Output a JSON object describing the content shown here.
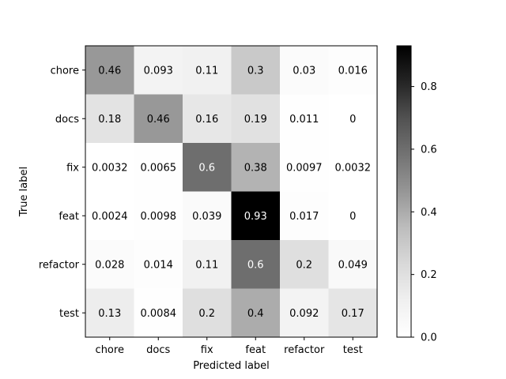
{
  "chart_data": {
    "type": "heatmap",
    "title": "",
    "xlabel": "Predicted label",
    "ylabel": "True label",
    "x_categories": [
      "chore",
      "docs",
      "fix",
      "feat",
      "refactor",
      "test"
    ],
    "y_categories": [
      "chore",
      "docs",
      "fix",
      "feat",
      "refactor",
      "test"
    ],
    "cell_labels": [
      [
        "0.46",
        "0.093",
        "0.11",
        "0.3",
        "0.03",
        "0.016"
      ],
      [
        "0.18",
        "0.46",
        "0.16",
        "0.19",
        "0.011",
        "0"
      ],
      [
        "0.0032",
        "0.0065",
        "0.6",
        "0.38",
        "0.0097",
        "0.0032"
      ],
      [
        "0.0024",
        "0.0098",
        "0.039",
        "0.93",
        "0.017",
        "0"
      ],
      [
        "0.028",
        "0.014",
        "0.11",
        "0.6",
        "0.2",
        "0.049"
      ],
      [
        "0.13",
        "0.0084",
        "0.2",
        "0.4",
        "0.092",
        "0.17"
      ]
    ],
    "values": [
      [
        0.46,
        0.093,
        0.11,
        0.3,
        0.03,
        0.016
      ],
      [
        0.18,
        0.46,
        0.16,
        0.19,
        0.011,
        0
      ],
      [
        0.0032,
        0.0065,
        0.6,
        0.38,
        0.0097,
        0.0032
      ],
      [
        0.0024,
        0.0098,
        0.039,
        0.93,
        0.017,
        0
      ],
      [
        0.028,
        0.014,
        0.11,
        0.6,
        0.2,
        0.049
      ],
      [
        0.13,
        0.0084,
        0.2,
        0.4,
        0.092,
        0.17
      ]
    ],
    "colormap": "Greys",
    "colorbar": {
      "range": [
        0,
        0.93
      ],
      "ticks": [
        0.0,
        0.2,
        0.4,
        0.6,
        0.8
      ],
      "tick_labels": [
        "0.0",
        "0.2",
        "0.4",
        "0.6",
        "0.8"
      ]
    },
    "grid": false,
    "legend": "colorbar-right"
  }
}
